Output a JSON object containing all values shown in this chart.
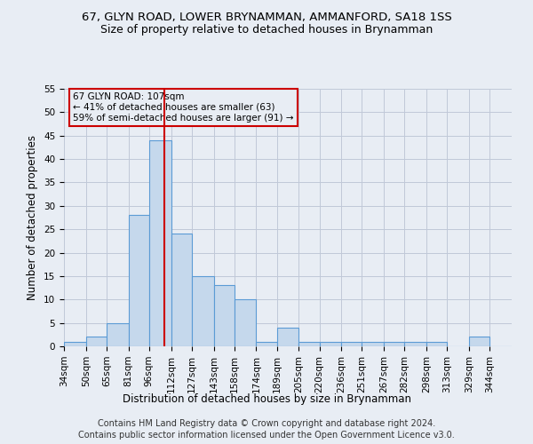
{
  "title": "67, GLYN ROAD, LOWER BRYNAMMAN, AMMANFORD, SA18 1SS",
  "subtitle": "Size of property relative to detached houses in Brynamman",
  "xlabel": "Distribution of detached houses by size in Brynamman",
  "ylabel": "Number of detached properties",
  "footer1": "Contains HM Land Registry data © Crown copyright and database right 2024.",
  "footer2": "Contains public sector information licensed under the Open Government Licence v3.0.",
  "annotation_line1": "67 GLYN ROAD: 107sqm",
  "annotation_line2": "← 41% of detached houses are smaller (63)",
  "annotation_line3": "59% of semi-detached houses are larger (91) →",
  "bar_color": "#c5d8ec",
  "bar_edge_color": "#5b9bd5",
  "grid_color": "#c0c8d8",
  "vline_color": "#cc0000",
  "vline_x": 107,
  "categories": [
    "34sqm",
    "50sqm",
    "65sqm",
    "81sqm",
    "96sqm",
    "112sqm",
    "127sqm",
    "143sqm",
    "158sqm",
    "174sqm",
    "189sqm",
    "205sqm",
    "220sqm",
    "236sqm",
    "251sqm",
    "267sqm",
    "282sqm",
    "298sqm",
    "313sqm",
    "329sqm",
    "344sqm"
  ],
  "bin_edges": [
    34,
    50,
    65,
    81,
    96,
    112,
    127,
    143,
    158,
    174,
    189,
    205,
    220,
    236,
    251,
    267,
    282,
    298,
    313,
    329,
    344,
    360
  ],
  "values": [
    1,
    2,
    5,
    28,
    44,
    24,
    15,
    13,
    10,
    1,
    4,
    1,
    1,
    1,
    1,
    1,
    1,
    1,
    0,
    2,
    0
  ],
  "ylim": [
    0,
    55
  ],
  "yticks": [
    0,
    5,
    10,
    15,
    20,
    25,
    30,
    35,
    40,
    45,
    50,
    55
  ],
  "background_color": "#e8edf4",
  "title_fontsize": 9.5,
  "subtitle_fontsize": 9,
  "axis_fontsize": 8.5,
  "tick_fontsize": 7.5,
  "footer_fontsize": 7,
  "annotation_fontsize": 7.5
}
